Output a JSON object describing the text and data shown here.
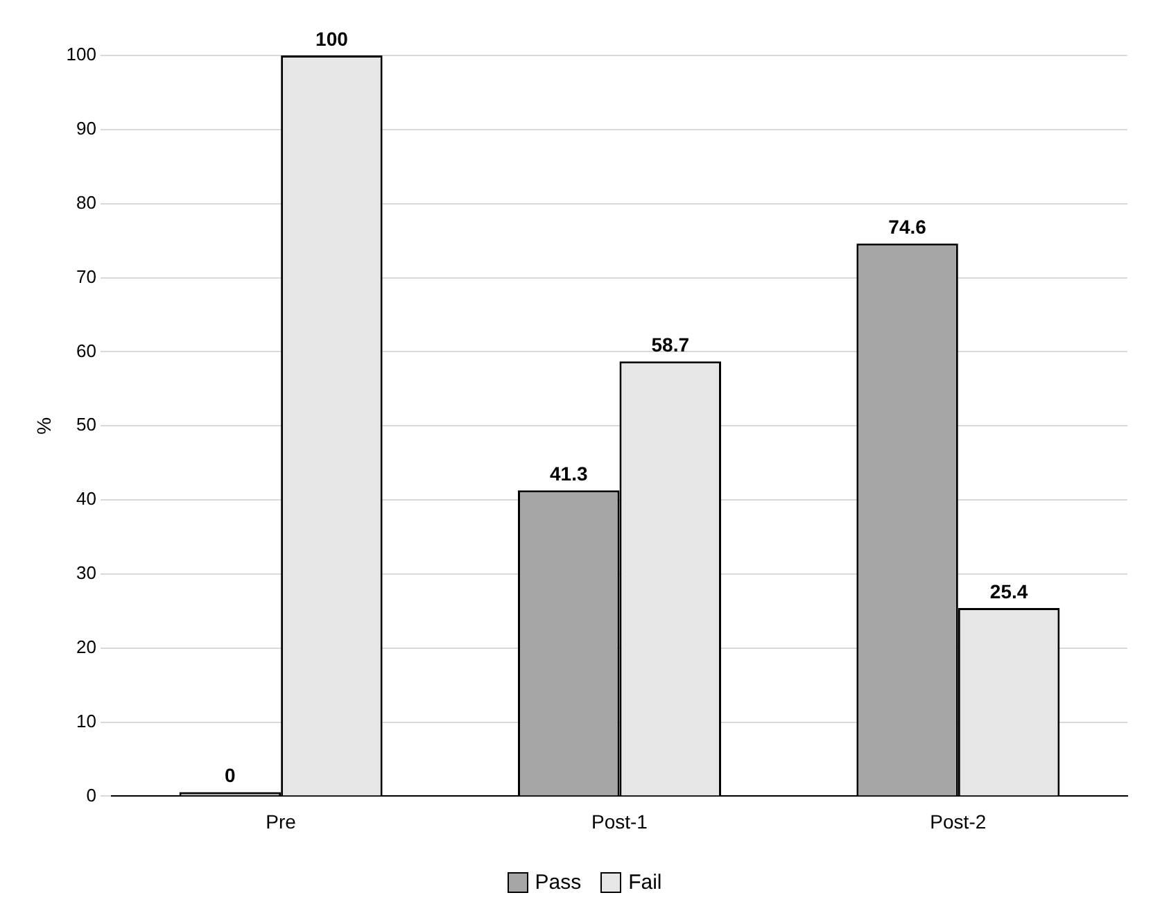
{
  "chart_data": {
    "type": "bar",
    "ylabel": "%",
    "categories": [
      "Pre",
      "Post-1",
      "Post-2"
    ],
    "series": [
      {
        "name": "Pass",
        "color": "#a6a6a6",
        "values": [
          0,
          41.3,
          74.6
        ]
      },
      {
        "name": "Fail",
        "color": "#e6e6e6",
        "values": [
          100,
          58.7,
          25.4
        ]
      }
    ],
    "ylim": [
      0,
      100
    ],
    "yticks": [
      0,
      10,
      20,
      30,
      40,
      50,
      60,
      70,
      80,
      90,
      100
    ],
    "grid": "y",
    "legend": "bottom",
    "data_labels": true
  }
}
